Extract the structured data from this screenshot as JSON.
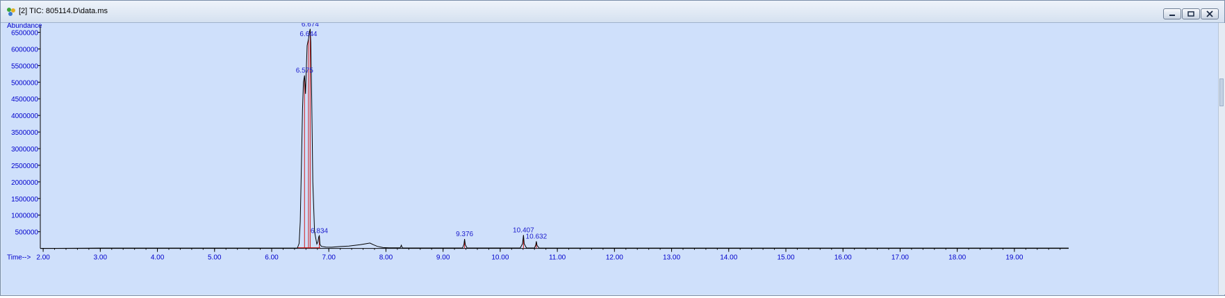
{
  "window": {
    "title": "[2] TIC: 805114.D\\data.ms",
    "controls": [
      "minimize",
      "restore",
      "close"
    ]
  },
  "colors": {
    "plot_background": "#cfe0fb",
    "trace": "#000000",
    "integration_marks": "#d11c1c",
    "axis_text": "#0000cc",
    "peak_labels": "#1a1acc"
  },
  "chart_data": {
    "type": "line",
    "title": "",
    "ylabel": "Abundance",
    "xlabel": "Time-->",
    "xlim": [
      1.95,
      19.95
    ],
    "ylim": [
      -30000,
      6720000
    ],
    "x_ticks": [
      2.0,
      3.0,
      4.0,
      5.0,
      6.0,
      7.0,
      8.0,
      9.0,
      10.0,
      11.0,
      12.0,
      13.0,
      14.0,
      15.0,
      16.0,
      17.0,
      18.0,
      19.0
    ],
    "x_tick_labels": [
      "2.00",
      "3.00",
      "4.00",
      "5.00",
      "6.00",
      "7.00",
      "8.00",
      "9.00",
      "10.00",
      "11.00",
      "12.00",
      "13.00",
      "14.00",
      "15.00",
      "16.00",
      "17.00",
      "18.00",
      "19.00"
    ],
    "y_ticks": [
      500000,
      1000000,
      1500000,
      2000000,
      2500000,
      3000000,
      3500000,
      4000000,
      4500000,
      5000000,
      5500000,
      6000000,
      6500000
    ],
    "y_tick_labels": [
      "500000",
      "1000000",
      "1500000",
      "2000000",
      "2500000",
      "3000000",
      "3500000",
      "4000000",
      "4500000",
      "5000000",
      "5500000",
      "6000000",
      "6500000"
    ],
    "series": [
      {
        "x": [
          1.95,
          3.0,
          4.0,
          5.0,
          6.0,
          6.45,
          6.48,
          6.5,
          6.52,
          6.54,
          6.556,
          6.575,
          6.592,
          6.605,
          6.62,
          6.644,
          6.66,
          6.674,
          6.685,
          6.7,
          6.72,
          6.75,
          6.79,
          6.81,
          6.825,
          6.834,
          6.845,
          6.87,
          6.95,
          7.05,
          7.2,
          7.35,
          7.45,
          7.55,
          7.65,
          7.72,
          7.78,
          7.85,
          7.95,
          8.05,
          8.15,
          8.25,
          8.27,
          8.285,
          8.31,
          8.5,
          9.0,
          9.34,
          9.365,
          9.376,
          9.39,
          9.42,
          9.8,
          10.35,
          10.39,
          10.407,
          10.42,
          10.46,
          10.6,
          10.622,
          10.632,
          10.645,
          10.68,
          11.0,
          13.0,
          15.0,
          17.0,
          19.0,
          19.95
        ],
        "y": [
          0,
          10000,
          10000,
          10000,
          10000,
          12000,
          150000,
          800000,
          2500000,
          4200000,
          5000000,
          5200000,
          4650000,
          5300000,
          6100000,
          6300000,
          6500000,
          6600000,
          6200000,
          4500000,
          2000000,
          500000,
          130000,
          200000,
          350000,
          380000,
          120000,
          60000,
          40000,
          35000,
          55000,
          70000,
          90000,
          110000,
          140000,
          160000,
          110000,
          60000,
          25000,
          15000,
          15000,
          15000,
          95000,
          15000,
          12000,
          12000,
          12000,
          12000,
          120000,
          280000,
          110000,
          12000,
          12000,
          12000,
          140000,
          400000,
          140000,
          12000,
          12000,
          100000,
          210000,
          90000,
          12000,
          10000,
          10000,
          10000,
          10000,
          10000,
          10000
        ]
      }
    ],
    "peaks": [
      {
        "rt": 6.575,
        "label": "6.575",
        "height": 5200000
      },
      {
        "rt": 6.644,
        "label": "6.644",
        "height": 6300000
      },
      {
        "rt": 6.674,
        "label": "6.674",
        "height": 6600000
      },
      {
        "rt": 6.834,
        "label": "6.834",
        "height": 380000
      },
      {
        "rt": 9.376,
        "label": "9.376",
        "height": 280000
      },
      {
        "rt": 10.407,
        "label": "10.407",
        "height": 400000
      },
      {
        "rt": 10.632,
        "label": "10.632",
        "height": 210000
      }
    ],
    "grid": false,
    "legend": "none"
  }
}
